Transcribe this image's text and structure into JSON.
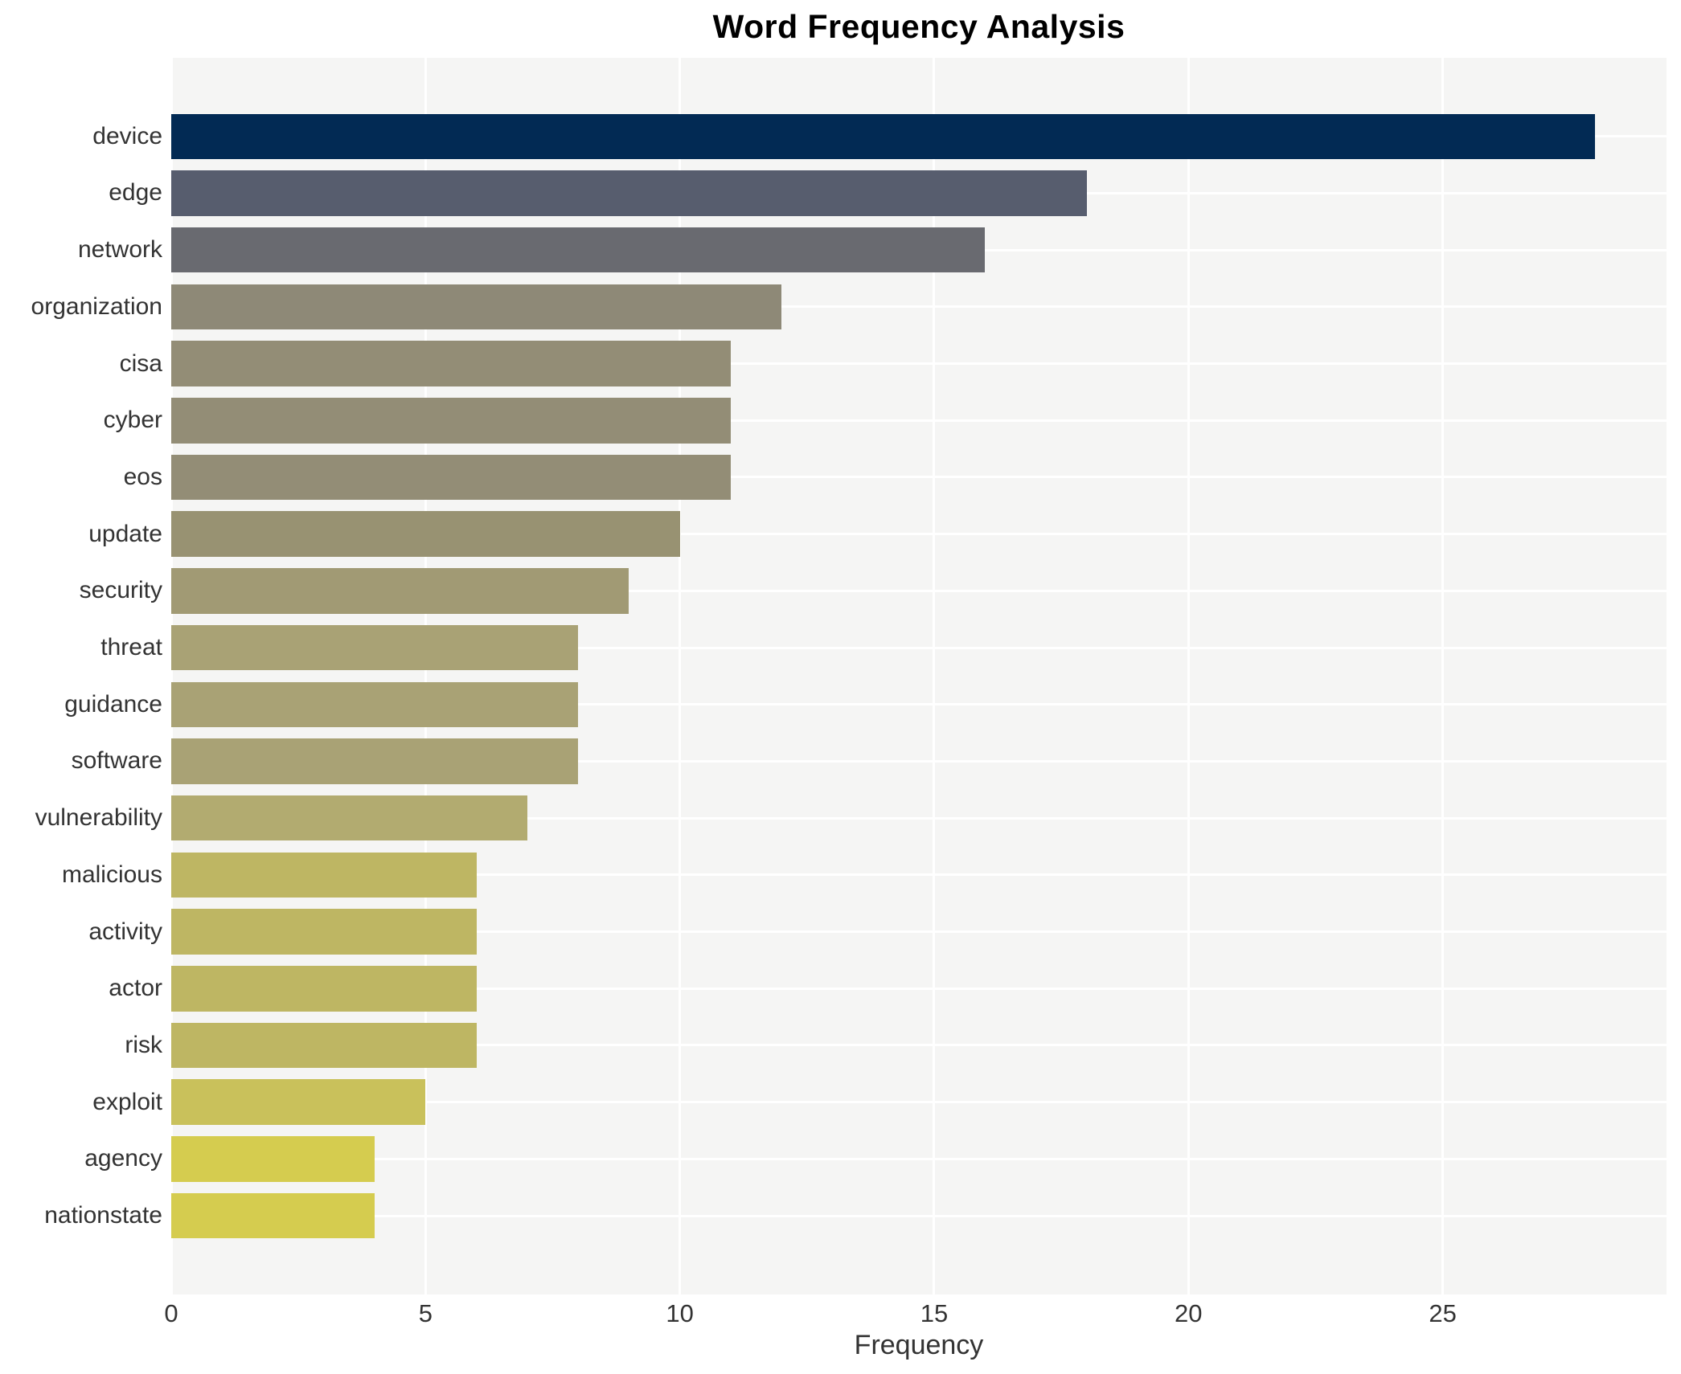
{
  "page": {
    "background": "#FFFFFF"
  },
  "chart_data": {
    "type": "bar",
    "orientation": "horizontal",
    "title": "Word Frequency Analysis",
    "xlabel": "Frequency",
    "ylabel": "",
    "categories": [
      "device",
      "edge",
      "network",
      "organization",
      "cisa",
      "cyber",
      "eos",
      "update",
      "security",
      "threat",
      "guidance",
      "software",
      "vulnerability",
      "malicious",
      "activity",
      "actor",
      "risk",
      "exploit",
      "agency",
      "nationstate"
    ],
    "values": [
      28,
      18,
      16,
      12,
      11,
      11,
      11,
      10,
      9,
      8,
      8,
      8,
      7,
      6,
      6,
      6,
      6,
      5,
      4,
      4
    ],
    "bar_colors": [
      "#022A54",
      "#575D6E",
      "#696A70",
      "#8E8977",
      "#938D76",
      "#938D76",
      "#938D76",
      "#989272",
      "#A19A74",
      "#A9A275",
      "#A9A275",
      "#A9A275",
      "#B2AB70",
      "#BEB663",
      "#BEB663",
      "#BEB663",
      "#BEB663",
      "#C9C15B",
      "#D5CC4F",
      "#D5CC4F"
    ],
    "xlim": [
      0,
      29.4
    ],
    "xticks": [
      0,
      5,
      10,
      15,
      20,
      25
    ],
    "grid": true,
    "legend_position": "none",
    "colors": {
      "plot_bg": "#F5F5F4",
      "grid": "#FFFFFF",
      "axis_text": "#333333",
      "title_text": "#000000"
    }
  }
}
